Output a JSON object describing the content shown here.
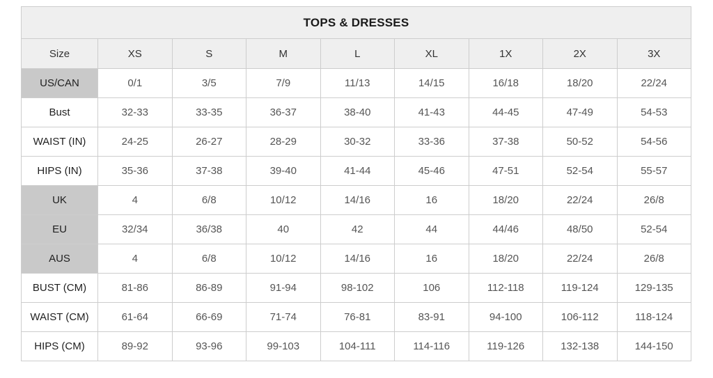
{
  "page_title": "TOPS & DRESSES",
  "chart_data": {
    "type": "table",
    "title": "TOPS & DRESSES",
    "columns": [
      "Size",
      "XS",
      "S",
      "M",
      "L",
      "XL",
      "1X",
      "2X",
      "3X"
    ],
    "rows": [
      {
        "label": "US/CAN",
        "shaded": true,
        "values": [
          "0/1",
          "3/5",
          "7/9",
          "11/13",
          "14/15",
          "16/18",
          "18/20",
          "22/24"
        ]
      },
      {
        "label": "Bust",
        "shaded": false,
        "values": [
          "32-33",
          "33-35",
          "36-37",
          "38-40",
          "41-43",
          "44-45",
          "47-49",
          "54-53"
        ]
      },
      {
        "label": "WAIST (IN)",
        "shaded": false,
        "values": [
          "24-25",
          "26-27",
          "28-29",
          "30-32",
          "33-36",
          "37-38",
          "50-52",
          "54-56"
        ]
      },
      {
        "label": "HIPS (IN)",
        "shaded": false,
        "values": [
          "35-36",
          "37-38",
          "39-40",
          "41-44",
          "45-46",
          "47-51",
          "52-54",
          "55-57"
        ]
      },
      {
        "label": "UK",
        "shaded": true,
        "values": [
          "4",
          "6/8",
          "10/12",
          "14/16",
          "16",
          "18/20",
          "22/24",
          "26/8"
        ]
      },
      {
        "label": "EU",
        "shaded": true,
        "values": [
          "32/34",
          "36/38",
          "40",
          "42",
          "44",
          "44/46",
          "48/50",
          "52-54"
        ]
      },
      {
        "label": "AUS",
        "shaded": true,
        "values": [
          "4",
          "6/8",
          "10/12",
          "14/16",
          "16",
          "18/20",
          "22/24",
          "26/8"
        ]
      },
      {
        "label": "BUST (CM)",
        "shaded": false,
        "values": [
          "81-86",
          "86-89",
          "91-94",
          "98-102",
          "106",
          "112-118",
          "119-124",
          "129-135"
        ]
      },
      {
        "label": "WAIST (CM)",
        "shaded": false,
        "values": [
          "61-64",
          "66-69",
          "71-74",
          "76-81",
          "83-91",
          "94-100",
          "106-112",
          "118-124"
        ]
      },
      {
        "label": "HIPS (CM)",
        "shaded": false,
        "values": [
          "89-92",
          "93-96",
          "99-103",
          "104-111",
          "114-116",
          "119-126",
          "132-138",
          "144-150"
        ]
      }
    ],
    "layout": {
      "header_background": "#efefef",
      "shaded_label_background": "#c9c9c9",
      "value_text_color": "#555555",
      "label_text_color": "#1f1f1f",
      "outer_border_color": "#9d9d9d",
      "inner_border_color": "#cdcdcd"
    }
  }
}
